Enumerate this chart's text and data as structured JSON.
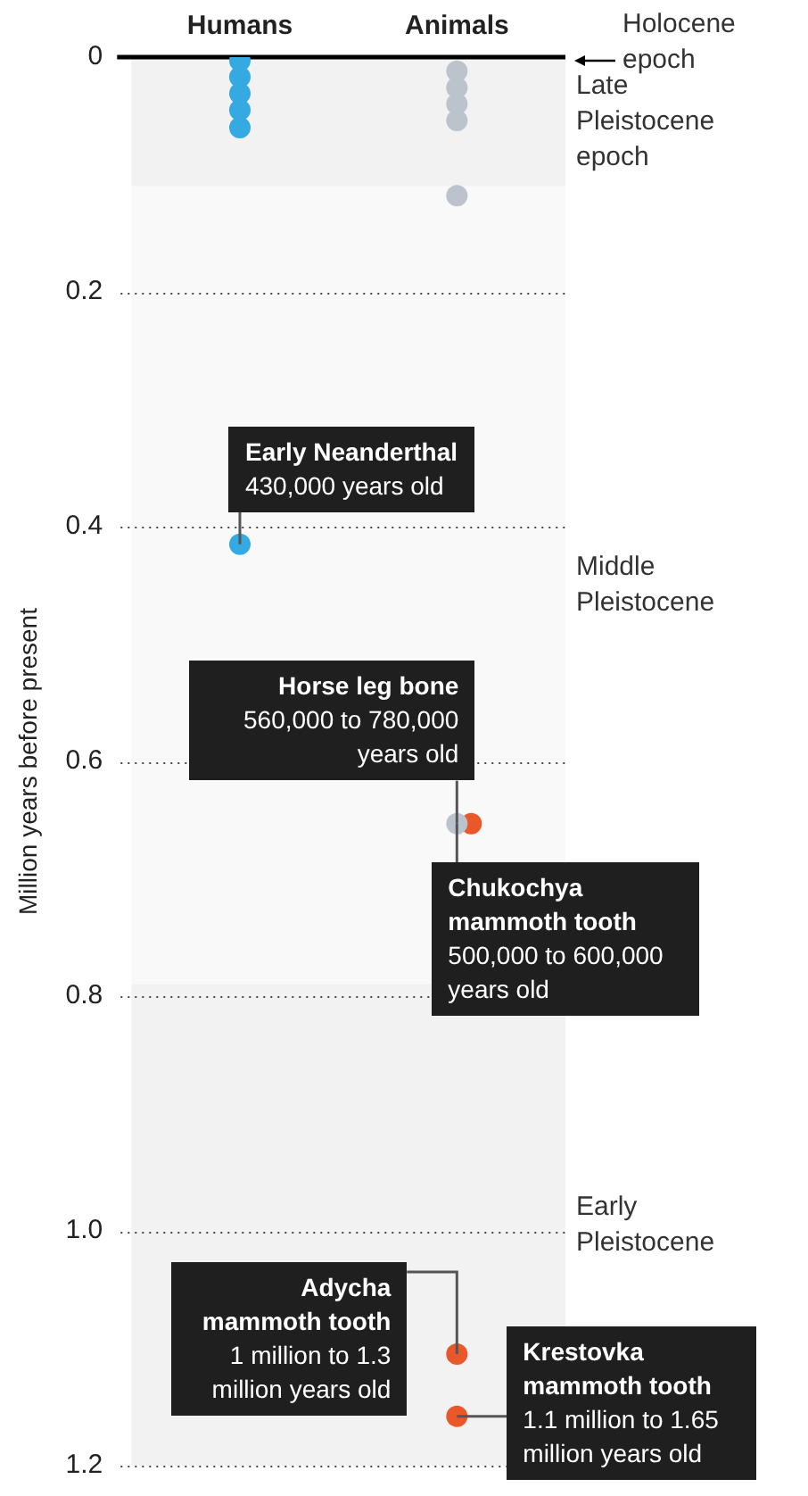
{
  "chart_data": {
    "type": "scatter",
    "categories": [
      "Humans",
      "Animals"
    ],
    "ylabel": "Million years before present",
    "series": [
      {
        "color": "#35a9e1",
        "x": [
          "Humans",
          "Humans",
          "Humans",
          "Humans",
          "Humans",
          "Humans"
        ],
        "values": [
          0.003,
          0.017,
          0.031,
          0.045,
          0.06,
          0.415
        ]
      },
      {
        "color": "#bcc3cc",
        "x": [
          "Animals",
          "Animals",
          "Animals",
          "Animals",
          "Animals",
          "Animals"
        ],
        "values": [
          0.012,
          0.026,
          0.04,
          0.054,
          0.118,
          0.653
        ]
      },
      {
        "color": "#e8582a",
        "x": [
          "Animals",
          "Animals",
          "Animals"
        ],
        "values": [
          0.653,
          1.105,
          1.158
        ]
      }
    ],
    "marker": "circle",
    "ylim": [
      1.2,
      0
    ],
    "yticks": [
      0,
      0.2,
      0.4,
      0.6,
      0.8,
      {
        "value": 1,
        "label": "1.0"
      },
      1.2
    ],
    "grid": "y",
    "ref_lines": [
      {
        "axis": "y",
        "value": 0,
        "label": "Holocene epoch",
        "color": "#000000"
      }
    ],
    "bands": [
      {
        "axis": "y",
        "from": 0,
        "to": 0.11,
        "label": "Late Pleistocene epoch",
        "color": "#f2f2f2"
      },
      {
        "axis": "y",
        "from": 0.11,
        "to": 0.79,
        "label": "Middle Pleistocene",
        "color": "#f9f9f9"
      },
      {
        "axis": "y",
        "from": 0.79,
        "to": 1.2,
        "label": "Early Pleistocene",
        "color": "#f2f2f2"
      }
    ],
    "annotations": [
      {
        "text": "Early Neanderthal\n430,000 years old",
        "x": "Humans",
        "y": 0.415
      },
      {
        "text": "Horse leg bone\n560,000 to 780,000 years old",
        "x": "Animals",
        "y": 0.653
      },
      {
        "text": "Chukochya mammoth tooth\n500,000 to 600,000 years old",
        "x": "Animals",
        "y": 0.653
      },
      {
        "text": "Adycha mammoth tooth\n1 million to 1.3 million years old",
        "x": "Animals",
        "y": 1.105
      },
      {
        "text": "Krestovka mammoth tooth\n1.1 million to 1.65 million years old",
        "x": "Animals",
        "y": 1.158
      }
    ]
  }
}
